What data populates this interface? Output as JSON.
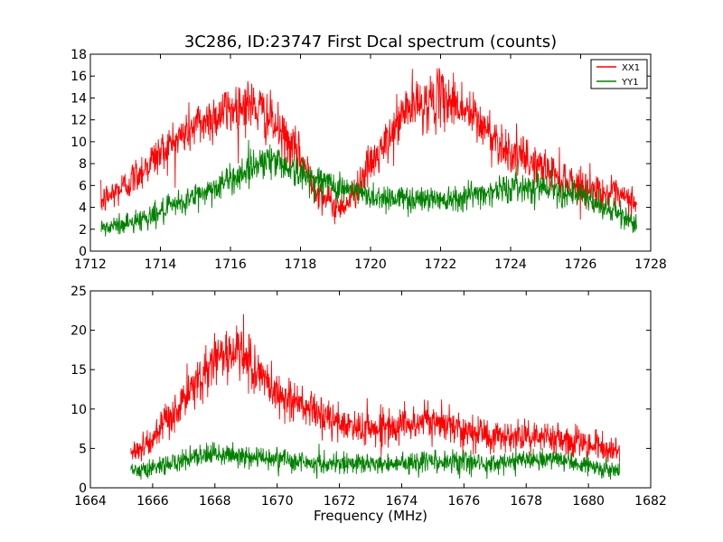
{
  "chart_data": [
    {
      "type": "line",
      "title": "3C286, ID:23747 First Dcal spectrum (counts)",
      "xlabel": "",
      "ylabel": "",
      "xlim": [
        1712,
        1728
      ],
      "ylim": [
        0,
        18
      ],
      "x_ticks": [
        1712,
        1714,
        1716,
        1718,
        1720,
        1722,
        1724,
        1726,
        1728
      ],
      "y_ticks": [
        0,
        2,
        4,
        6,
        8,
        10,
        12,
        14,
        16,
        18
      ],
      "grid": false,
      "legend": "top-right",
      "noise_level": 1.0,
      "series": [
        {
          "name": "XX1",
          "color": "#ff0000",
          "x": [
            1712.3,
            1713.0,
            1714.0,
            1715.0,
            1716.0,
            1716.5,
            1717.0,
            1718.0,
            1718.5,
            1719.0,
            1719.4,
            1719.8,
            1720.5,
            1721.0,
            1722.0,
            1722.5,
            1723.0,
            1724.0,
            1725.0,
            1726.0,
            1727.0,
            1727.6
          ],
          "values": [
            4.5,
            6.0,
            9.0,
            11.5,
            13.0,
            13.5,
            12.5,
            8.5,
            5.5,
            4.0,
            4.5,
            7.0,
            10.0,
            13.0,
            14.0,
            13.5,
            12.0,
            9.0,
            7.5,
            6.0,
            5.0,
            4.5
          ]
        },
        {
          "name": "YY1",
          "color": "#008000",
          "x": [
            1712.3,
            1713.0,
            1714.0,
            1715.0,
            1716.0,
            1716.5,
            1717.0,
            1717.5,
            1718.0,
            1719.0,
            1720.0,
            1721.0,
            1722.0,
            1723.0,
            1724.0,
            1725.0,
            1726.0,
            1727.0,
            1727.6
          ],
          "values": [
            2.0,
            2.5,
            3.5,
            5.0,
            6.5,
            7.5,
            8.5,
            8.0,
            7.0,
            6.0,
            5.0,
            4.8,
            4.8,
            5.2,
            5.8,
            6.0,
            5.0,
            3.5,
            2.5
          ]
        }
      ]
    },
    {
      "type": "line",
      "title": "",
      "xlabel": "Frequency (MHz)",
      "ylabel": "",
      "xlim": [
        1664,
        1682
      ],
      "ylim": [
        0,
        25
      ],
      "x_ticks": [
        1664,
        1666,
        1668,
        1670,
        1672,
        1674,
        1676,
        1678,
        1680,
        1682
      ],
      "y_ticks": [
        0,
        5,
        10,
        15,
        20,
        25
      ],
      "grid": false,
      "noise_level": 1.2,
      "series": [
        {
          "color": "#ff0000",
          "x": [
            1665.3,
            1666.0,
            1667.0,
            1668.0,
            1668.5,
            1669.0,
            1669.5,
            1670.0,
            1671.0,
            1672.0,
            1673.0,
            1674.0,
            1675.0,
            1676.0,
            1677.0,
            1678.0,
            1679.0,
            1680.0,
            1681.0
          ],
          "values": [
            4.5,
            6.0,
            11.0,
            16.5,
            17.5,
            16.5,
            14.0,
            12.0,
            10.0,
            8.0,
            7.5,
            8.0,
            8.5,
            7.5,
            6.5,
            6.5,
            6.5,
            5.5,
            4.5
          ]
        },
        {
          "color": "#008000",
          "x": [
            1665.3,
            1666.0,
            1667.0,
            1668.0,
            1669.0,
            1670.0,
            1671.0,
            1672.0,
            1673.0,
            1674.0,
            1675.0,
            1676.0,
            1677.0,
            1678.0,
            1679.0,
            1680.0,
            1681.0
          ],
          "values": [
            2.0,
            2.5,
            3.5,
            4.2,
            4.0,
            3.8,
            3.2,
            3.0,
            3.0,
            3.2,
            3.4,
            3.3,
            3.2,
            3.5,
            3.5,
            2.8,
            2.0
          ]
        }
      ]
    }
  ]
}
